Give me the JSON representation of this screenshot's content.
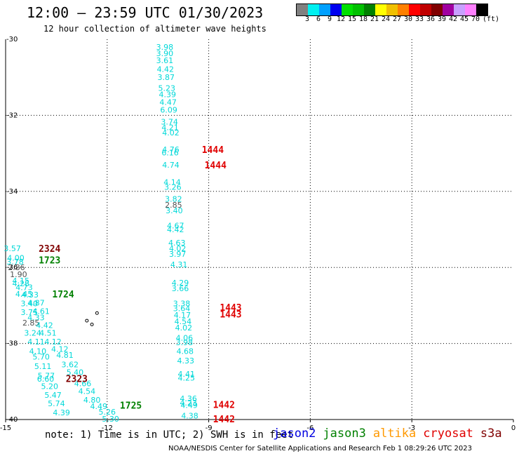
{
  "header": {
    "title": "12:00 – 23:59 UTC 01/30/2023",
    "subtitle": "12 hour collection of altimeter wave heights"
  },
  "color_scale": {
    "unit": "(ft)",
    "swatches": [
      {
        "color": "#808080"
      },
      {
        "color": "#00f0f0"
      },
      {
        "color": "#00a0ff"
      },
      {
        "color": "#0000f0"
      },
      {
        "color": "#00e000"
      },
      {
        "color": "#00c000"
      },
      {
        "color": "#008000"
      },
      {
        "color": "#ffff00"
      },
      {
        "color": "#f0c000"
      },
      {
        "color": "#ff8000"
      },
      {
        "color": "#ff0000"
      },
      {
        "color": "#c00000"
      },
      {
        "color": "#800000"
      },
      {
        "color": "#a000a0"
      },
      {
        "color": "#c8a0ff"
      },
      {
        "color": "#ff80ff"
      },
      {
        "color": "#000000"
      }
    ],
    "labels": [
      "3",
      "6",
      "9",
      "12",
      "15",
      "18",
      "21",
      "24",
      "27",
      "30",
      "33",
      "36",
      "39",
      "42",
      "45",
      "70"
    ]
  },
  "axes": {
    "x_ticks": [
      {
        "value": -15,
        "label": "-15"
      },
      {
        "value": -12,
        "label": "-12"
      },
      {
        "value": -9,
        "label": "-9"
      },
      {
        "value": -6,
        "label": "-6"
      },
      {
        "value": -3,
        "label": "-3"
      },
      {
        "value": 0,
        "label": "0"
      }
    ],
    "y_ticks": [
      {
        "value": -30,
        "label": "-30"
      },
      {
        "value": -32,
        "label": "-32"
      },
      {
        "value": -34,
        "label": "-34"
      },
      {
        "value": -36,
        "label": "-36"
      },
      {
        "value": -38,
        "label": "-38"
      },
      {
        "value": -40,
        "label": "-40"
      }
    ],
    "xlim": [
      -15,
      0
    ],
    "ylim": [
      -40,
      -30
    ],
    "grid": true
  },
  "colors": {
    "cyan": "#00d8d8",
    "gray": "#505050",
    "red": "#e00000",
    "darkred": "#800000",
    "green": "#008000",
    "blue": "#0000e0",
    "orange": "#ff9900",
    "darkgreen": "#008000"
  },
  "chart_data": {
    "type": "scatter",
    "swh_points": [
      {
        "lon": -10.3,
        "lat": -30.2,
        "label": "3.98",
        "color": "cyan"
      },
      {
        "lon": -10.3,
        "lat": -30.37,
        "label": "3.90",
        "color": "cyan"
      },
      {
        "lon": -10.3,
        "lat": -30.55,
        "label": "3.61",
        "color": "cyan"
      },
      {
        "lon": -10.28,
        "lat": -30.78,
        "label": "4.42",
        "color": "cyan"
      },
      {
        "lon": -10.26,
        "lat": -31.0,
        "label": "3.87",
        "color": "cyan"
      },
      {
        "lon": -10.24,
        "lat": -31.28,
        "label": "5.23",
        "color": "cyan"
      },
      {
        "lon": -10.22,
        "lat": -31.45,
        "label": "4.39",
        "color": "cyan"
      },
      {
        "lon": -10.2,
        "lat": -31.65,
        "label": "4.47",
        "color": "cyan"
      },
      {
        "lon": -10.18,
        "lat": -31.85,
        "label": "6.09",
        "color": "cyan"
      },
      {
        "lon": -10.16,
        "lat": -32.17,
        "label": "3.74",
        "color": "cyan"
      },
      {
        "lon": -10.14,
        "lat": -32.32,
        "label": "4.21",
        "color": "cyan"
      },
      {
        "lon": -10.12,
        "lat": -32.45,
        "label": "4.02",
        "color": "cyan"
      },
      {
        "lon": -10.12,
        "lat": -32.9,
        "label": "4.76",
        "color": "cyan"
      },
      {
        "lon": -10.14,
        "lat": -32.98,
        "label": "6.16",
        "color": "cyan"
      },
      {
        "lon": -10.12,
        "lat": -33.3,
        "label": "4.74",
        "color": "cyan"
      },
      {
        "lon": -10.08,
        "lat": -33.75,
        "label": "4.14",
        "color": "cyan"
      },
      {
        "lon": -10.06,
        "lat": -33.88,
        "label": "3.26",
        "color": "cyan"
      },
      {
        "lon": -10.04,
        "lat": -34.2,
        "label": "3.82",
        "color": "cyan"
      },
      {
        "lon": -10.04,
        "lat": -34.35,
        "label": "2.85",
        "color": "gray"
      },
      {
        "lon": -10.02,
        "lat": -34.5,
        "label": "3.40",
        "color": "cyan"
      },
      {
        "lon": -9.98,
        "lat": -34.9,
        "label": "4.67",
        "color": "cyan"
      },
      {
        "lon": -9.98,
        "lat": -35.0,
        "label": "4.42",
        "color": "cyan"
      },
      {
        "lon": -9.94,
        "lat": -35.35,
        "label": "4.63",
        "color": "cyan"
      },
      {
        "lon": -9.92,
        "lat": -35.5,
        "label": "4.02",
        "color": "cyan"
      },
      {
        "lon": -9.92,
        "lat": -35.65,
        "label": "3.97",
        "color": "cyan"
      },
      {
        "lon": -9.88,
        "lat": -35.92,
        "label": "4.31",
        "color": "cyan"
      },
      {
        "lon": -9.84,
        "lat": -36.4,
        "label": "4.29",
        "color": "cyan"
      },
      {
        "lon": -9.84,
        "lat": -36.55,
        "label": "3.66",
        "color": "cyan"
      },
      {
        "lon": -9.8,
        "lat": -36.95,
        "label": "3.38",
        "color": "cyan"
      },
      {
        "lon": -9.8,
        "lat": -37.08,
        "label": "3.64",
        "color": "cyan"
      },
      {
        "lon": -9.78,
        "lat": -37.25,
        "label": "4.17",
        "color": "cyan"
      },
      {
        "lon": -9.76,
        "lat": -37.42,
        "label": "4.54",
        "color": "cyan"
      },
      {
        "lon": -9.74,
        "lat": -37.58,
        "label": "4.02",
        "color": "cyan"
      },
      {
        "lon": -9.72,
        "lat": -37.85,
        "label": "4.06",
        "color": "cyan"
      },
      {
        "lon": -9.72,
        "lat": -37.97,
        "label": "3.98",
        "color": "cyan"
      },
      {
        "lon": -9.7,
        "lat": -38.2,
        "label": "4.68",
        "color": "cyan"
      },
      {
        "lon": -9.68,
        "lat": -38.45,
        "label": "4.33",
        "color": "cyan"
      },
      {
        "lon": -9.66,
        "lat": -38.8,
        "label": "4.41",
        "color": "cyan"
      },
      {
        "lon": -9.66,
        "lat": -38.9,
        "label": "4.25",
        "color": "cyan"
      },
      {
        "lon": -9.6,
        "lat": -39.45,
        "label": "4.36",
        "color": "cyan"
      },
      {
        "lon": -9.6,
        "lat": -39.56,
        "label": "4.23",
        "color": "cyan"
      },
      {
        "lon": -9.58,
        "lat": -39.62,
        "label": "4.49",
        "color": "cyan"
      },
      {
        "lon": -9.56,
        "lat": -39.9,
        "label": "4.38",
        "color": "cyan"
      },
      {
        "lon": -14.8,
        "lat": -35.5,
        "label": "3.57",
        "color": "cyan"
      },
      {
        "lon": -14.7,
        "lat": -35.75,
        "label": "4.00",
        "color": "cyan"
      },
      {
        "lon": -14.72,
        "lat": -35.85,
        "label": "3.78",
        "color": "cyan"
      },
      {
        "lon": -14.68,
        "lat": -36.0,
        "label": "2.86",
        "color": "gray"
      },
      {
        "lon": -14.62,
        "lat": -36.18,
        "label": "1.90",
        "color": "gray"
      },
      {
        "lon": -14.55,
        "lat": -36.35,
        "label": "4.15",
        "color": "cyan"
      },
      {
        "lon": -14.55,
        "lat": -36.42,
        "label": "4.28",
        "color": "cyan"
      },
      {
        "lon": -14.45,
        "lat": -36.52,
        "label": "4.73",
        "color": "cyan"
      },
      {
        "lon": -14.46,
        "lat": -36.7,
        "label": "4.45",
        "color": "cyan"
      },
      {
        "lon": -14.28,
        "lat": -36.72,
        "label": "4.33",
        "color": "cyan"
      },
      {
        "lon": -14.3,
        "lat": -36.95,
        "label": "3.40",
        "color": "cyan"
      },
      {
        "lon": -14.1,
        "lat": -36.93,
        "label": "4.87",
        "color": "cyan"
      },
      {
        "lon": -14.3,
        "lat": -37.18,
        "label": "3.75",
        "color": "cyan"
      },
      {
        "lon": -13.95,
        "lat": -37.15,
        "label": "4.61",
        "color": "cyan"
      },
      {
        "lon": -14.1,
        "lat": -37.32,
        "label": "4.33",
        "color": "cyan"
      },
      {
        "lon": -14.25,
        "lat": -37.45,
        "label": "2.85",
        "color": "gray"
      },
      {
        "lon": -13.85,
        "lat": -37.52,
        "label": "4.42",
        "color": "cyan"
      },
      {
        "lon": -14.2,
        "lat": -37.72,
        "label": "3.24",
        "color": "cyan"
      },
      {
        "lon": -13.75,
        "lat": -37.72,
        "label": "4.51",
        "color": "cyan"
      },
      {
        "lon": -14.1,
        "lat": -37.95,
        "label": "4.11",
        "color": "cyan"
      },
      {
        "lon": -13.6,
        "lat": -37.95,
        "label": "4.12",
        "color": "cyan"
      },
      {
        "lon": -14.05,
        "lat": -38.2,
        "label": "4.10",
        "color": "cyan"
      },
      {
        "lon": -13.4,
        "lat": -38.15,
        "label": "4.12",
        "color": "cyan"
      },
      {
        "lon": -13.95,
        "lat": -38.35,
        "label": "5.70",
        "color": "cyan"
      },
      {
        "lon": -13.25,
        "lat": -38.3,
        "label": "4.81",
        "color": "cyan"
      },
      {
        "lon": -13.9,
        "lat": -38.6,
        "label": "5.11",
        "color": "cyan"
      },
      {
        "lon": -13.1,
        "lat": -38.55,
        "label": "3.62",
        "color": "cyan"
      },
      {
        "lon": -13.8,
        "lat": -38.85,
        "label": "5.77",
        "color": "cyan"
      },
      {
        "lon": -13.82,
        "lat": -38.93,
        "label": "6.60",
        "color": "cyan"
      },
      {
        "lon": -12.95,
        "lat": -38.75,
        "label": "5.40",
        "color": "cyan"
      },
      {
        "lon": -13.7,
        "lat": -39.12,
        "label": "5.20",
        "color": "cyan"
      },
      {
        "lon": -12.72,
        "lat": -39.05,
        "label": "4.66",
        "color": "cyan"
      },
      {
        "lon": -13.6,
        "lat": -39.35,
        "label": "5.47",
        "color": "cyan"
      },
      {
        "lon": -12.6,
        "lat": -39.25,
        "label": "4.54",
        "color": "cyan"
      },
      {
        "lon": -13.5,
        "lat": -39.58,
        "label": "5.74",
        "color": "cyan"
      },
      {
        "lon": -12.45,
        "lat": -39.48,
        "label": "4.80",
        "color": "cyan"
      },
      {
        "lon": -13.35,
        "lat": -39.82,
        "label": "4.39",
        "color": "cyan"
      },
      {
        "lon": -12.25,
        "lat": -39.65,
        "label": "4.49",
        "color": "cyan"
      },
      {
        "lon": -12.0,
        "lat": -39.8,
        "label": "5.26",
        "color": "cyan"
      },
      {
        "lon": -11.9,
        "lat": -39.98,
        "label": "5.30",
        "color": "cyan"
      }
    ],
    "time_labels": [
      {
        "lon": -8.88,
        "lat": -32.9,
        "label": "1444",
        "color": "red"
      },
      {
        "lon": -8.8,
        "lat": -33.3,
        "label": "1444",
        "color": "red"
      },
      {
        "lon": -13.7,
        "lat": -35.5,
        "label": "2324",
        "color": "darkred"
      },
      {
        "lon": -13.7,
        "lat": -35.8,
        "label": "1723",
        "color": "green"
      },
      {
        "lon": -13.3,
        "lat": -36.7,
        "label": "1724",
        "color": "green"
      },
      {
        "lon": -8.35,
        "lat": -37.05,
        "label": "1443",
        "color": "red"
      },
      {
        "lon": -8.35,
        "lat": -37.22,
        "label": "1443",
        "color": "red"
      },
      {
        "lon": -12.9,
        "lat": -38.92,
        "label": "2323",
        "color": "darkred"
      },
      {
        "lon": -11.3,
        "lat": -39.62,
        "label": "1725",
        "color": "green"
      },
      {
        "lon": -8.55,
        "lat": -39.6,
        "label": "1442",
        "color": "red"
      },
      {
        "lon": -8.55,
        "lat": -39.98,
        "label": "1442",
        "color": "red"
      }
    ]
  },
  "islands": [
    {
      "lon": -12.3,
      "lat": -37.2
    },
    {
      "lon": -12.6,
      "lat": -37.4
    },
    {
      "lon": -12.45,
      "lat": -37.5
    }
  ],
  "footer": {
    "note": "note: 1) Time is in UTC; 2) SWH is in feet",
    "satellites": [
      {
        "name": "jason2",
        "color": "blue"
      },
      {
        "name": "jason3",
        "color": "darkgreen"
      },
      {
        "name": "altika",
        "color": "orange"
      },
      {
        "name": "cryosat",
        "color": "red"
      },
      {
        "name": "s3a",
        "color": "darkred"
      }
    ],
    "credit": "NOAA/NESDIS Center for Satellite Applications and Research    Feb  1 08:29:26 UTC 2023"
  }
}
